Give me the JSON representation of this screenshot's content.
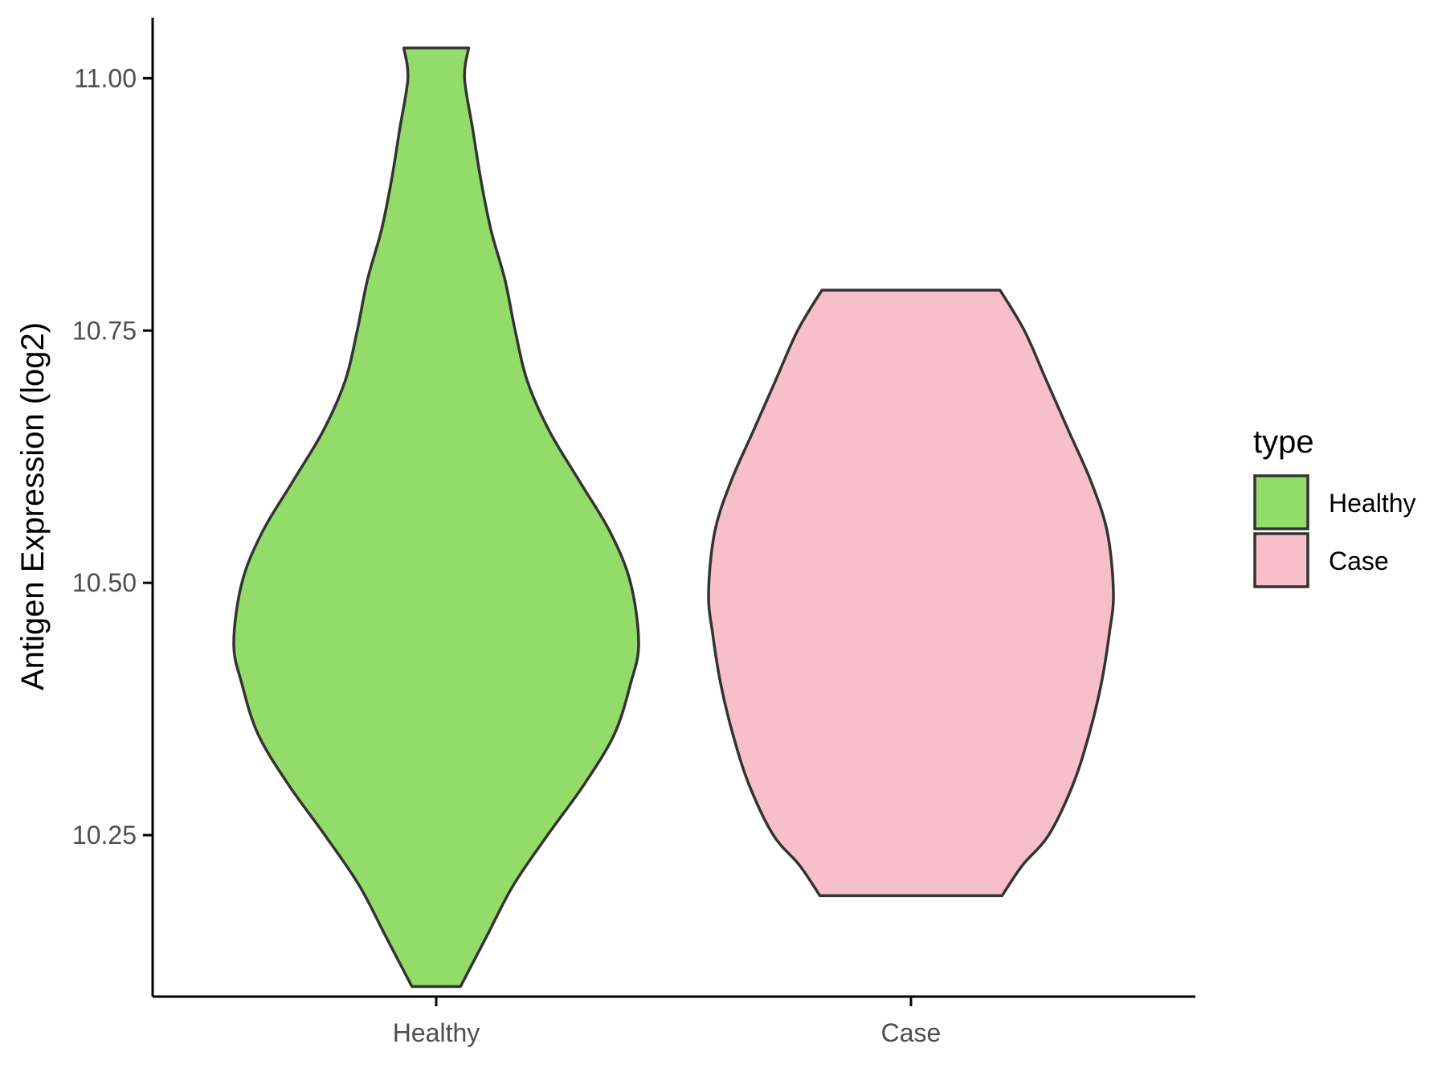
{
  "chart_data": {
    "type": "violin",
    "ylabel": "Antigen Expression (log2)",
    "xlabel": "",
    "categories": [
      "Healthy",
      "Case"
    ],
    "ylim": [
      10.09,
      11.06
    ],
    "y_ticks": [
      10.25,
      10.5,
      10.75,
      11.0
    ],
    "y_tick_labels": [
      "10.25",
      "10.50",
      "10.75",
      "11.00"
    ],
    "grid": false,
    "legend": {
      "title": "type",
      "position": "right",
      "entries": [
        {
          "label": "Healthy",
          "color": "#93DC6A"
        },
        {
          "label": "Case",
          "color": "#F7BFCB"
        }
      ]
    },
    "series": [
      {
        "category": "Healthy",
        "color": "#93DC6A",
        "min": 10.1,
        "max": 11.03,
        "density_profile": [
          [
            10.1,
            0.12
          ],
          [
            10.15,
            0.25
          ],
          [
            10.2,
            0.38
          ],
          [
            10.25,
            0.55
          ],
          [
            10.3,
            0.73
          ],
          [
            10.35,
            0.88
          ],
          [
            10.4,
            0.96
          ],
          [
            10.44,
            1.0
          ],
          [
            10.5,
            0.96
          ],
          [
            10.55,
            0.86
          ],
          [
            10.6,
            0.71
          ],
          [
            10.65,
            0.56
          ],
          [
            10.7,
            0.45
          ],
          [
            10.75,
            0.39
          ],
          [
            10.8,
            0.34
          ],
          [
            10.85,
            0.27
          ],
          [
            10.9,
            0.22
          ],
          [
            10.95,
            0.18
          ],
          [
            11.0,
            0.14
          ],
          [
            11.03,
            0.16
          ]
        ]
      },
      {
        "category": "Case",
        "color": "#F7BFCB",
        "min": 10.19,
        "max": 10.79,
        "density_profile": [
          [
            10.19,
            0.45
          ],
          [
            10.22,
            0.55
          ],
          [
            10.25,
            0.68
          ],
          [
            10.3,
            0.8
          ],
          [
            10.35,
            0.88
          ],
          [
            10.4,
            0.94
          ],
          [
            10.45,
            0.98
          ],
          [
            10.49,
            1.0
          ],
          [
            10.55,
            0.97
          ],
          [
            10.6,
            0.89
          ],
          [
            10.65,
            0.78
          ],
          [
            10.7,
            0.67
          ],
          [
            10.75,
            0.56
          ],
          [
            10.79,
            0.44
          ]
        ]
      }
    ]
  }
}
